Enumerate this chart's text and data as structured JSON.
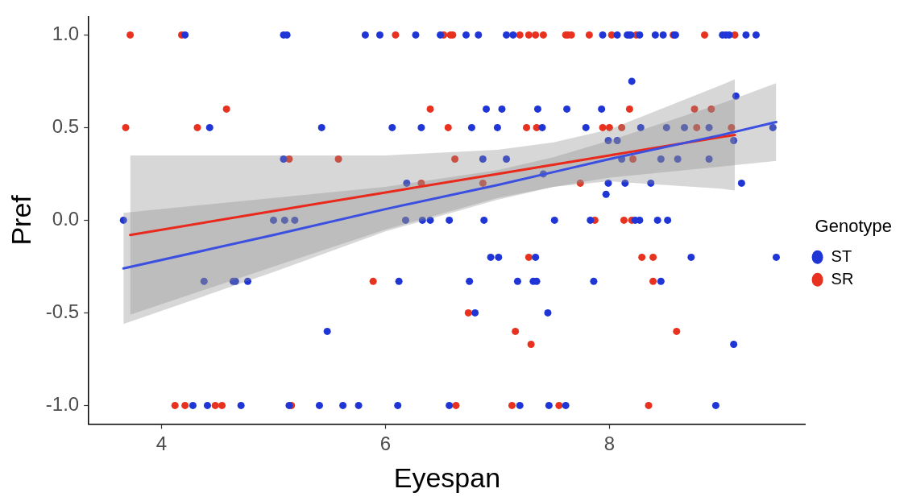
{
  "chart_data": {
    "type": "scatter",
    "xlabel": "Eyespan",
    "ylabel": "Pref",
    "legend_title": "Genotype",
    "legend": "right",
    "grid": false,
    "marker": "circle",
    "xlim": [
      3.35,
      9.75
    ],
    "xticks": [
      4,
      6,
      8
    ],
    "ylim": [
      -1.1,
      1.1
    ],
    "yticks": [
      {
        "value": -1,
        "label": "-1.0"
      },
      {
        "value": -0.5,
        "label": "-0.5"
      },
      {
        "value": 0,
        "label": "0.0"
      },
      {
        "value": 0.5,
        "label": "0.5"
      },
      {
        "value": 1,
        "label": "1.0"
      }
    ],
    "series": [
      {
        "name": "ST",
        "color": "#1f35d6",
        "x": [
          4.21,
          5.09,
          5.12,
          5.82,
          5.95,
          6.27,
          6.49,
          6.72,
          6.83,
          7.08,
          7.14,
          7.94,
          8.07,
          8.16,
          8.18,
          8.19,
          8.27,
          8.41,
          8.48,
          8.58,
          8.59,
          9.01,
          9.04,
          9.07,
          9.22,
          9.31,
          8.2,
          9.13,
          6.9,
          7.04,
          7.36,
          7.62,
          7.93,
          4.43,
          5.43,
          6.06,
          6.32,
          6.77,
          7.0,
          7.4,
          7.79,
          8.28,
          8.51,
          8.67,
          8.89,
          9.46,
          7.99,
          8.07,
          9.11,
          5.09,
          6.87,
          7.08,
          8.11,
          8.46,
          8.61,
          8.89,
          6.19,
          7.99,
          8.14,
          8.37,
          9.18,
          7.41,
          7.97,
          3.66,
          5.0,
          5.1,
          5.19,
          6.18,
          6.33,
          6.4,
          6.57,
          6.88,
          7.51,
          7.83,
          8.23,
          8.27,
          8.43,
          8.52,
          6.94,
          7.01,
          7.34,
          8.73,
          9.49,
          4.38,
          4.64,
          4.66,
          4.77,
          6.12,
          6.75,
          7.18,
          7.32,
          7.35,
          7.86,
          8.46,
          6.8,
          7.45,
          5.48,
          9.11,
          4.28,
          4.41,
          4.71,
          5.14,
          5.41,
          5.62,
          5.76,
          6.11,
          6.57,
          7.2,
          7.46,
          7.61,
          8.95
        ],
        "values": [
          1,
          1,
          1,
          1,
          1,
          1,
          1,
          1,
          1,
          1,
          1,
          1,
          1,
          1,
          1,
          1,
          1,
          1,
          1,
          1,
          1,
          1,
          1,
          1,
          1,
          1,
          0.75,
          0.67,
          0.6,
          0.6,
          0.6,
          0.6,
          0.6,
          0.5,
          0.5,
          0.5,
          0.5,
          0.5,
          0.5,
          0.5,
          0.5,
          0.5,
          0.5,
          0.5,
          0.5,
          0.5,
          0.43,
          0.43,
          0.43,
          0.33,
          0.33,
          0.33,
          0.33,
          0.33,
          0.33,
          0.33,
          0.2,
          0.2,
          0.2,
          0.2,
          0.2,
          0.25,
          0.14,
          0,
          0,
          0,
          0,
          0,
          0,
          0,
          0,
          0,
          0,
          0,
          0,
          0,
          0,
          0,
          -0.2,
          -0.2,
          -0.2,
          -0.2,
          -0.2,
          -0.33,
          -0.33,
          -0.33,
          -0.33,
          -0.33,
          -0.33,
          -0.33,
          -0.33,
          -0.33,
          -0.33,
          -0.33,
          -0.5,
          -0.5,
          -0.6,
          -0.67,
          -1,
          -1,
          -1,
          -1,
          -1,
          -1,
          -1,
          -1,
          -1,
          -1,
          -1,
          -1,
          -1
        ]
      },
      {
        "name": "SR",
        "color": "#e8321f",
        "x": [
          3.72,
          4.18,
          6.09,
          6.52,
          6.58,
          6.6,
          7.2,
          7.28,
          7.34,
          7.41,
          7.61,
          7.63,
          7.66,
          7.82,
          8.02,
          8.24,
          8.57,
          8.85,
          9.12,
          4.58,
          6.4,
          8.18,
          8.76,
          8.91,
          3.68,
          4.32,
          6.56,
          7.26,
          7.35,
          7.94,
          8.0,
          8.11,
          8.78,
          9.09,
          5.14,
          5.58,
          6.62,
          8.21,
          6.32,
          6.87,
          7.74,
          7.87,
          8.13,
          8.2,
          7.28,
          8.29,
          8.39,
          5.89,
          8.39,
          6.74,
          7.16,
          8.6,
          7.3,
          4.12,
          4.21,
          4.48,
          4.54,
          5.16,
          6.63,
          7.13,
          7.55,
          8.35
        ],
        "values": [
          1,
          1,
          1,
          1,
          1,
          1,
          1,
          1,
          1,
          1,
          1,
          1,
          1,
          1,
          1,
          1,
          1,
          1,
          1,
          0.6,
          0.6,
          0.6,
          0.6,
          0.6,
          0.5,
          0.5,
          0.5,
          0.5,
          0.5,
          0.5,
          0.5,
          0.5,
          0.5,
          0.5,
          0.33,
          0.33,
          0.33,
          0.33,
          0.2,
          0.2,
          0.2,
          0,
          0,
          0,
          -0.2,
          -0.2,
          -0.2,
          -0.33,
          -0.33,
          -0.5,
          -0.6,
          -0.6,
          -0.67,
          -1,
          -1,
          -1,
          -1,
          -1,
          -1,
          -1,
          -1,
          -1
        ]
      },
      {
        "type": "line",
        "marker": "none",
        "color": "#3b4fe0",
        "x": [
          3.66,
          5,
          6,
          7,
          7.5,
          8,
          9,
          9.49
        ],
        "values": [
          -0.26,
          -0.08,
          0.06,
          0.19,
          0.26,
          0.33,
          0.46,
          0.53
        ],
        "lower": [
          -0.56,
          -0.28,
          -0.06,
          0.11,
          0.18,
          0.23,
          0.29,
          0.32
        ],
        "upper": [
          0.04,
          0.12,
          0.18,
          0.27,
          0.34,
          0.43,
          0.63,
          0.74
        ]
      },
      {
        "type": "line",
        "marker": "none",
        "color": "#e8291c",
        "x": [
          3.72,
          5,
          6,
          7,
          7.5,
          8,
          9,
          9.12
        ],
        "values": [
          -0.08,
          0.05,
          0.15,
          0.25,
          0.3,
          0.35,
          0.45,
          0.46
        ],
        "lower": [
          -0.51,
          -0.25,
          -0.05,
          0.12,
          0.18,
          0.21,
          0.17,
          0.16
        ],
        "upper": [
          0.35,
          0.35,
          0.35,
          0.38,
          0.42,
          0.49,
          0.73,
          0.76
        ]
      }
    ]
  }
}
